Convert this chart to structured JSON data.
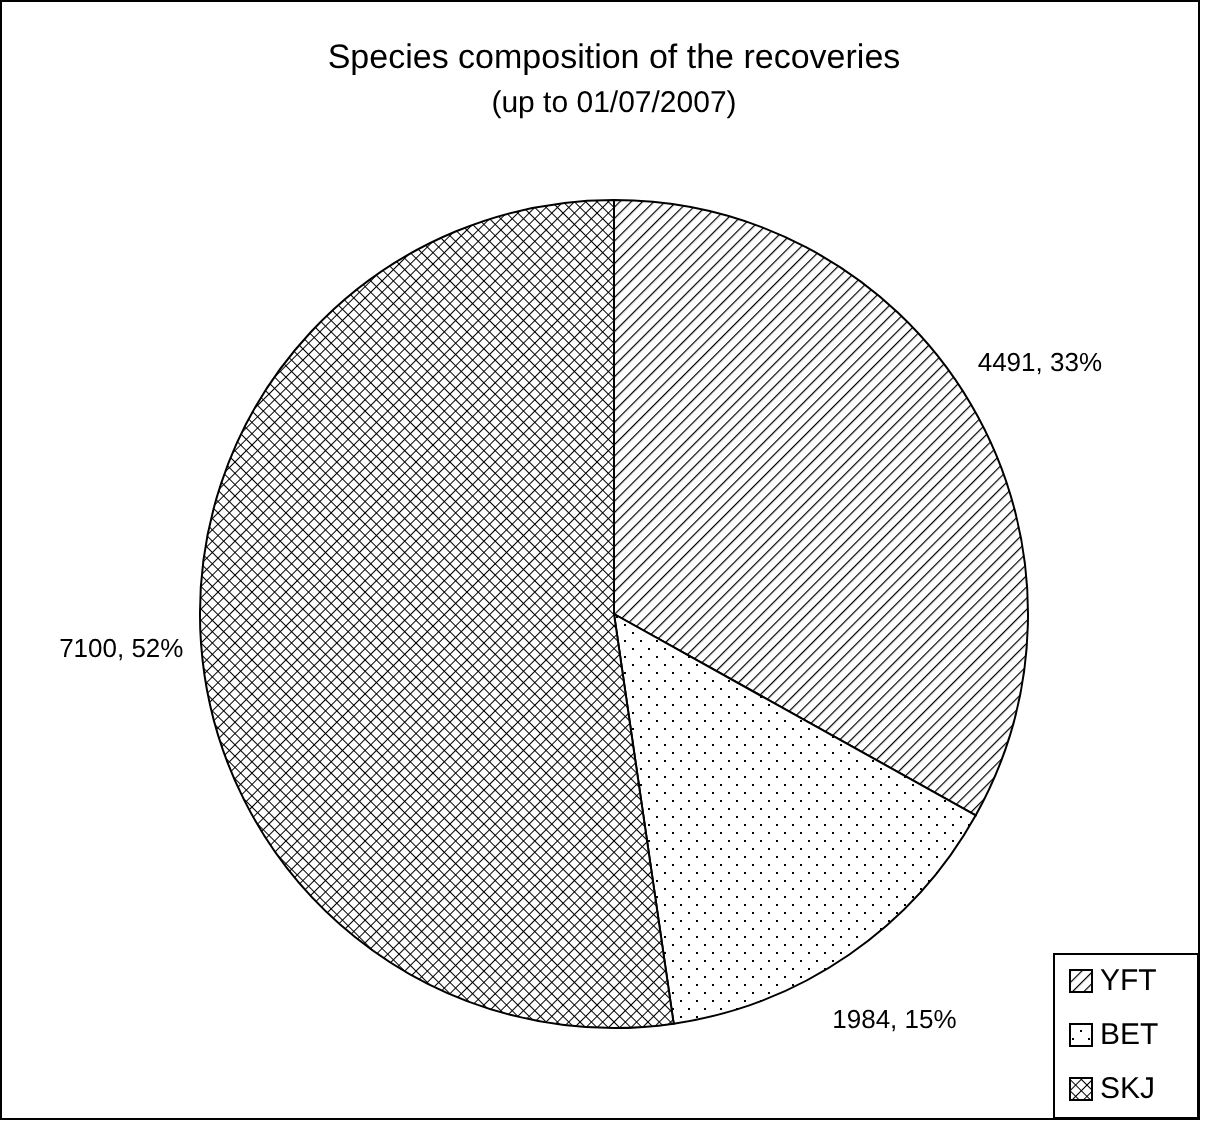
{
  "chart_data": {
    "type": "pie",
    "title": "Species composition of the recoveries",
    "subtitle": "(up to 01/07/2007)",
    "categories": [
      "YFT",
      "BET",
      "SKJ"
    ],
    "values": [
      4491,
      1984,
      7100
    ],
    "value_labels": [
      "4491, 33%",
      "1984, 15%",
      "7100, 52%"
    ],
    "colors": [
      "#000000",
      "#000000",
      "#000000"
    ],
    "legend": "bottom right"
  }
}
